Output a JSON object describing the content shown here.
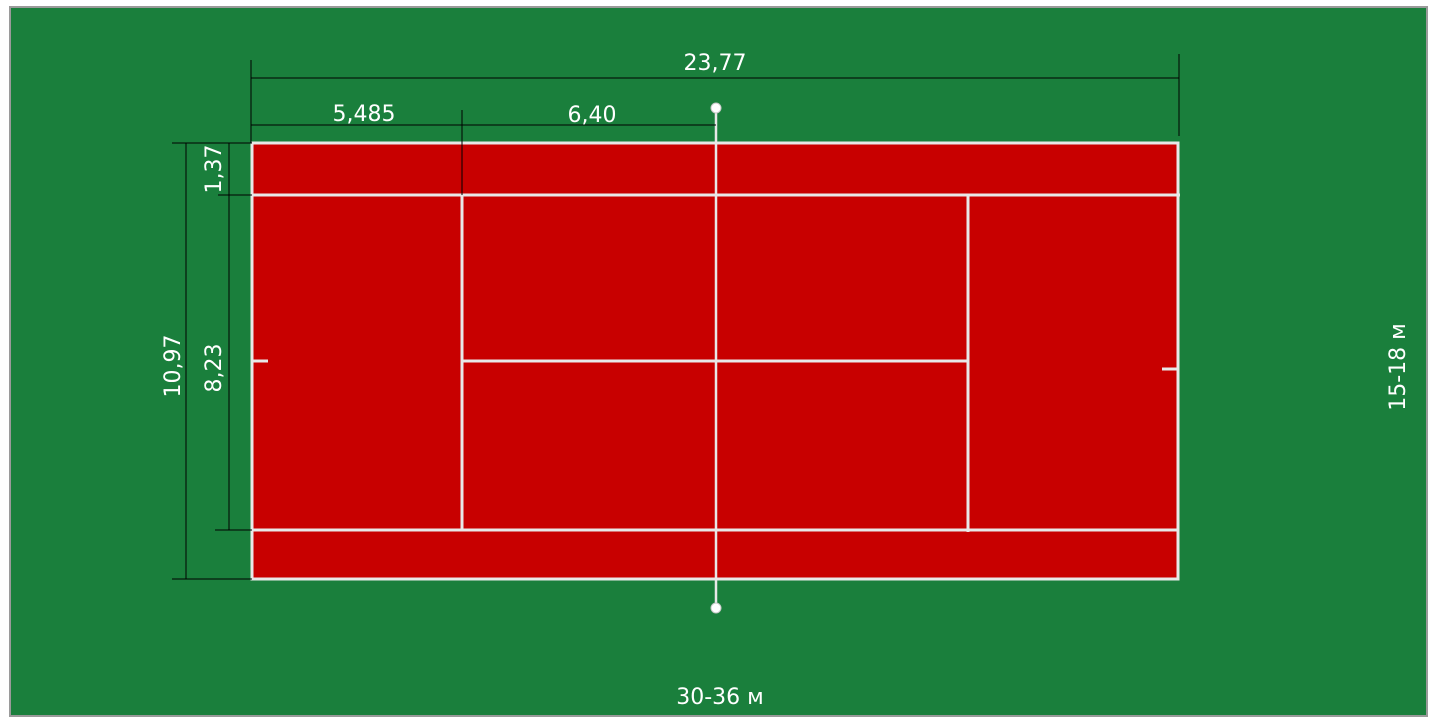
{
  "colors": {
    "surround": "#1a7f3c",
    "court": "#c80000",
    "court_lines": "#e8e8e8",
    "dimension_lines": "#000000",
    "label_text": "#ffffff",
    "frame": "#9a9a9a"
  },
  "dimensions": {
    "court_length": "23,77",
    "service_to_baseline": "5,485",
    "service_to_net": "6,40",
    "alley_width": "1,37",
    "singles_width": "8,23",
    "doubles_width": "10,97"
  },
  "area": {
    "length_label": "30-36 м",
    "width_label": "15-18 м"
  }
}
